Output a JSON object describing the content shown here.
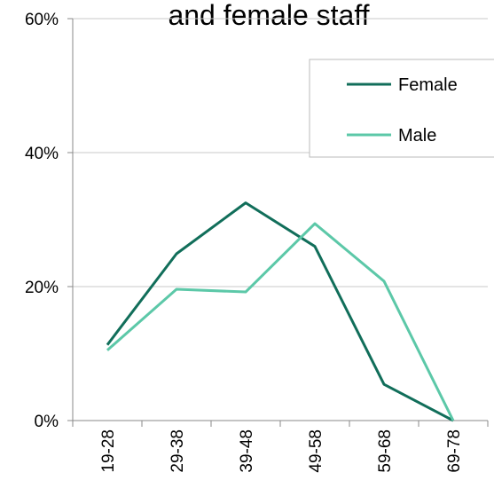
{
  "chart_data": {
    "type": "line",
    "title": "and female staff",
    "categories": [
      "19-28",
      "29-38",
      "39-48",
      "49-58",
      "59-68",
      "69-78"
    ],
    "series": [
      {
        "name": "Female",
        "color": "#116e5a",
        "values": [
          11.3,
          24.9,
          32.5,
          26,
          5.4,
          0
        ]
      },
      {
        "name": "Male",
        "color": "#5cc8a8",
        "values": [
          10.5,
          19.6,
          19.2,
          29.4,
          20.8,
          0
        ]
      }
    ],
    "ylim": [
      0,
      60
    ],
    "yticks": [
      {
        "value": 0,
        "label": "0%"
      },
      {
        "value": 20,
        "label": "20%"
      },
      {
        "value": 40,
        "label": "40%"
      },
      {
        "value": 60,
        "label": "60%"
      }
    ],
    "grid": true,
    "legend": "upper right"
  }
}
